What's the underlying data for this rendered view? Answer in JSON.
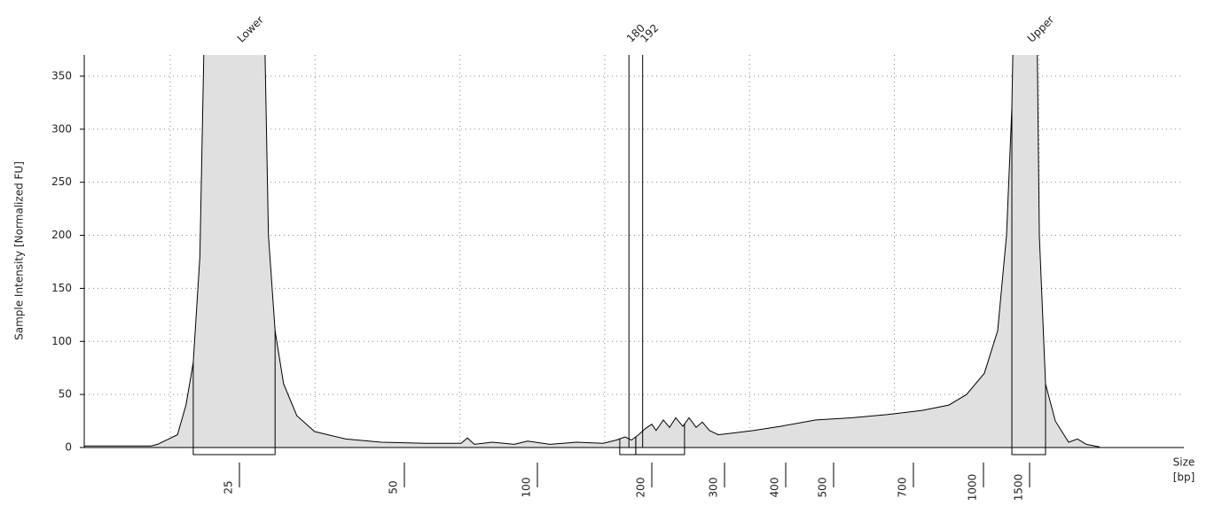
{
  "chart_data": {
    "type": "area",
    "y_label": "Sample Intensity [Normalized FU]",
    "x_label": "Size",
    "x_unit": "[bp]",
    "x": [
      1.5,
      11.6,
      12.6,
      15.6,
      16.9,
      18.0,
      19.0,
      20.0,
      28.5,
      29.4,
      30.4,
      31.7,
      33.7,
      36.4,
      41.1,
      46.5,
      58,
      71.3,
      73.7,
      76.3,
      83,
      91.3,
      96.3,
      110.9,
      134.1,
      157.4,
      169,
      176.7,
      182.2,
      188.4,
      194.6,
      200,
      206,
      215.9,
      224.4,
      232.9,
      242.7,
      251.2,
      261,
      269.5,
      279.3,
      291.5,
      318.8,
      347.8,
      391.3,
      463,
      544.4,
      633,
      738,
      852,
      927.8,
      1009.6,
      1153.8,
      1250,
      1307.7,
      1346,
      1567,
      1605.8,
      1673,
      1778.8,
      1923,
      2019,
      2115,
      2260
    ],
    "values": [
      1.5,
      1.5,
      3,
      12,
      40,
      80,
      180,
      500,
      500,
      200,
      110,
      60,
      30,
      15,
      8,
      5,
      4,
      4,
      9,
      3,
      5,
      3,
      6,
      3,
      5,
      4,
      7,
      10,
      7,
      12,
      18,
      22,
      16,
      26,
      19,
      28,
      20,
      28,
      19,
      24,
      16,
      12,
      14,
      16,
      20,
      26,
      28,
      31,
      35,
      40,
      50,
      70,
      110,
      200,
      320,
      500,
      500,
      200,
      60,
      25,
      5,
      8,
      3,
      0.5
    ],
    "color": "#e0e0e0",
    "ylim": [
      0,
      370
    ],
    "yticks": [
      0,
      50,
      100,
      150,
      200,
      250,
      300,
      350
    ],
    "xticks": [
      25,
      50,
      100,
      200,
      300,
      400,
      500,
      700,
      1000,
      1500
    ],
    "peaks": [
      {
        "label": "Lower",
        "x": 25
      },
      {
        "x": 180
      },
      {
        "x": 192
      },
      {
        "label": "Upper",
        "x": 1500
      }
    ],
    "regions": [
      [
        18.0,
        30.4
      ],
      [
        172,
        186
      ],
      [
        186,
        245
      ],
      [
        1308,
        1673
      ]
    ]
  }
}
